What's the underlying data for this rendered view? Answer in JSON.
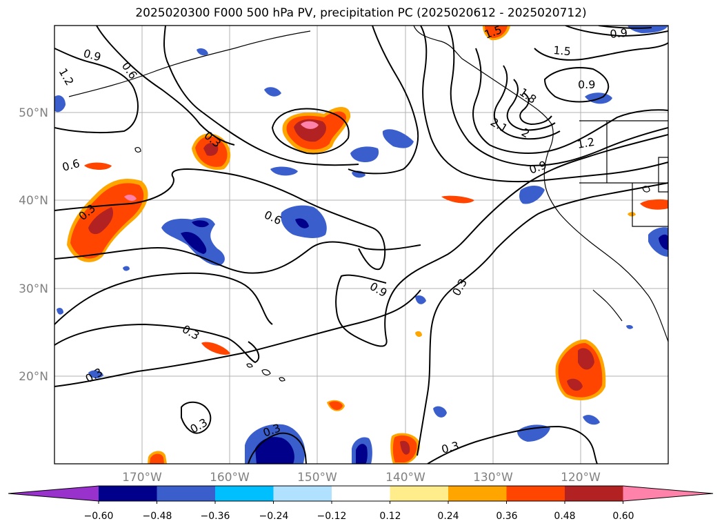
{
  "title": "2025020300 F000 500 hPa PV, precipitation PC (2025020612 - 2025020712)",
  "map": {
    "lat_labels": [
      "50°N",
      "40°N",
      "30°N",
      "20°N"
    ],
    "lon_labels": [
      "170°W",
      "160°W",
      "150°W",
      "140°W",
      "130°W",
      "120°W"
    ],
    "contour_labels": [
      "0.9",
      "0.6",
      "1.2",
      "0.6",
      "0.3",
      "0.3",
      "0.6",
      "0.9",
      "0.3",
      "0.3",
      "0.3",
      "0.3",
      "0.3",
      "0.3",
      "0.9",
      "1.5",
      "0.9",
      "1.8",
      "2.1",
      "2",
      "1.2",
      "0.9",
      "1.5"
    ]
  },
  "colorbar": {
    "ticks": [
      "−0.60",
      "−0.48",
      "−0.36",
      "−0.24",
      "−0.12",
      "0.12",
      "0.24",
      "0.36",
      "0.48",
      "0.60"
    ],
    "colors": [
      "#9932cc",
      "#00008b",
      "#3a5fcd",
      "#00bfff",
      "#b0e2ff",
      "#ffffff",
      "#ffec8b",
      "#ffa500",
      "#ff4500",
      "#b22222",
      "#ff82ab"
    ]
  }
}
